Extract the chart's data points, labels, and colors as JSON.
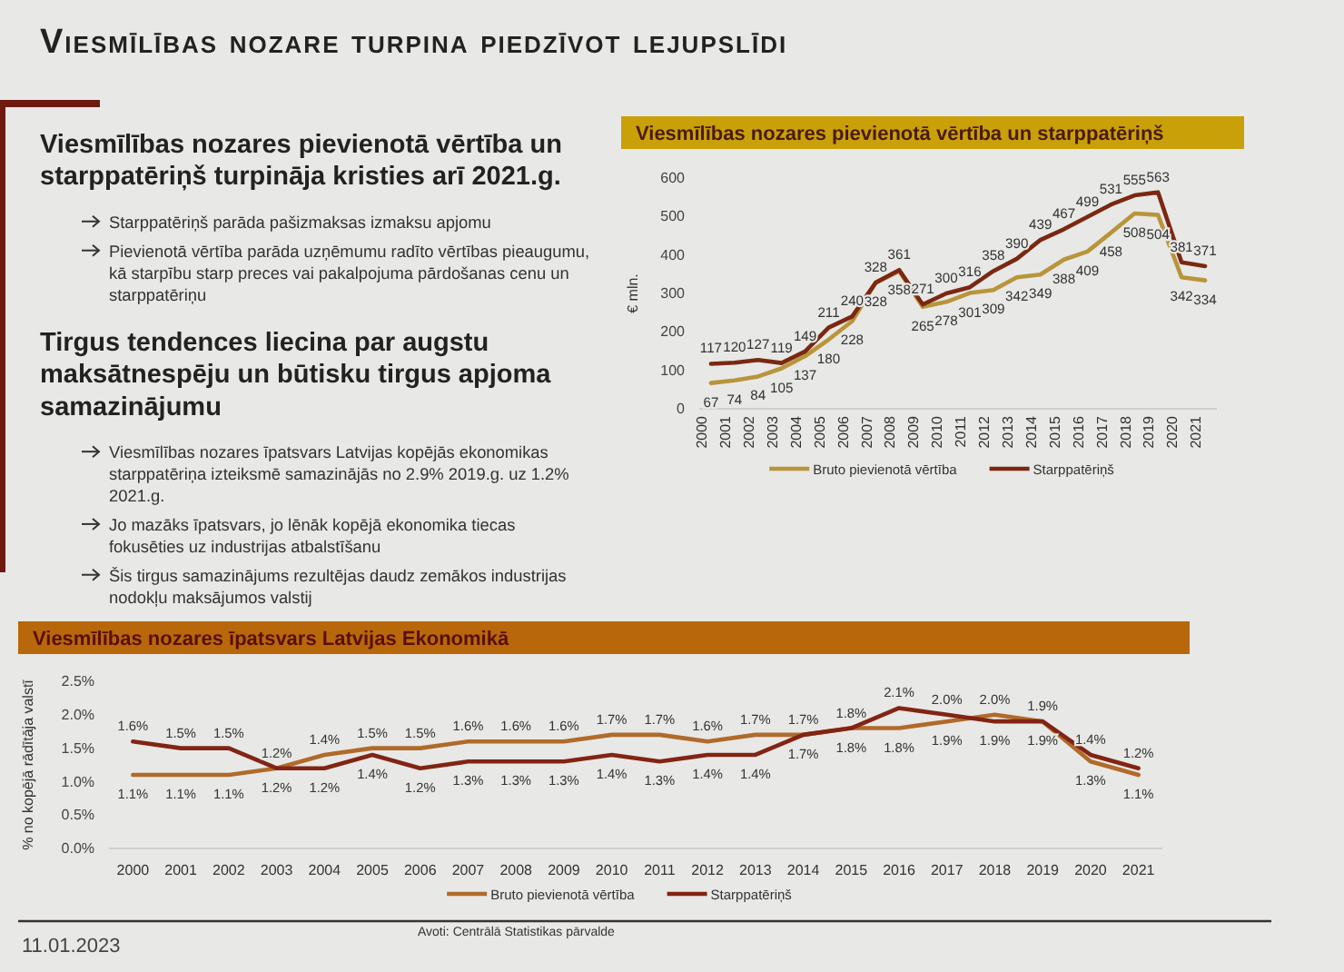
{
  "chart_data": [
    {
      "type": "other",
      "title": "Viesmīlības nozare turpina piedzīvot lejupslīdi",
      "annotations": [
        "11.01.2023"
      ]
    },
    {
      "type": "other",
      "title": "Viesmīlības nozares pievienotā vērtība un starppatēriņš turpināja kristies arī 2021.g.",
      "annotations": [
        "Starppatēriņš parāda pašizmaksas izmaksu apjomu",
        "Pievienotā vērtība parāda uzņēmumu radīto vērtības pieaugumu, kā starpību starp preces vai pakalpojuma pārdošanas cenu un starppatēriņu"
      ]
    },
    {
      "type": "other",
      "title": "Tirgus tendences liecina par augstu maksātnespēju un būtisku tirgus apjoma samazinājumu",
      "annotations": [
        "Viesmīlības nozares īpatsvars Latvijas kopējās ekonomikas starppatēriņa izteiksmē samazinājās no 2.9% 2019.g. uz 1.2% 2021.g.",
        "Jo mazāks īpatsvars, jo lēnāk kopējā ekonomika tiecas fokusēties uz industrijas atbalstīšanu",
        "Šis tirgus samazinājums rezultējas daudz zemākos industrijas nodokļu maksājumos valstij"
      ]
    },
    {
      "type": "line",
      "title": "Viesmīlības nozares pievienotā vērtība un starppatēriņš",
      "ylabel": "€ mln.",
      "categories": [
        "2000",
        "2001",
        "2002",
        "2003",
        "2004",
        "2005",
        "2006",
        "2007",
        "2008",
        "2009",
        "2010",
        "2011",
        "2012",
        "2013",
        "2014",
        "2015",
        "2016",
        "2017",
        "2018",
        "2019",
        "2020",
        "2021"
      ],
      "series": [
        {
          "name": "Bruto pievienotā vērtība",
          "color": "#b8953a",
          "values": [
            67,
            74,
            84,
            105,
            137,
            180,
            228,
            328,
            358,
            265,
            278,
            301,
            309,
            342,
            349,
            388,
            409,
            458,
            508,
            504,
            342,
            334
          ]
        },
        {
          "name": "Starppatēriņš",
          "color": "#7a2812",
          "values": [
            117,
            120,
            127,
            119,
            149,
            211,
            240,
            328,
            361,
            271,
            300,
            316,
            358,
            390,
            439,
            467,
            499,
            531,
            555,
            563,
            381,
            371
          ]
        }
      ],
      "ylim": [
        0,
        600
      ],
      "yticks": [
        0,
        100,
        200,
        300,
        400,
        500,
        600
      ],
      "data_labels": true,
      "legend": "bottom"
    },
    {
      "type": "line",
      "title": "Viesmīlības nozares īpatsvars Latvijas Ekonomikā",
      "ylabel": "% no kopējā rādītāja valstī",
      "categories": [
        "2000",
        "2001",
        "2002",
        "2003",
        "2004",
        "2005",
        "2006",
        "2007",
        "2008",
        "2009",
        "2010",
        "2011",
        "2012",
        "2013",
        "2014",
        "2015",
        "2016",
        "2017",
        "2018",
        "2019",
        "2020",
        "2021"
      ],
      "series": [
        {
          "name": "Bruto pievienotā vērtība",
          "color": "#b06a2a",
          "values": [
            1.1,
            1.1,
            1.1,
            1.2,
            1.4,
            1.5,
            1.5,
            1.6,
            1.6,
            1.6,
            1.7,
            1.7,
            1.6,
            1.7,
            1.7,
            1.8,
            1.8,
            1.9,
            2.0,
            1.9,
            1.3,
            1.1
          ],
          "value_labels": [
            "1.1%",
            "1.1%",
            "1.1%",
            "1.2%",
            "1.4%",
            "1.5%",
            "1.5%",
            "1.6%",
            "1.6%",
            "1.6%",
            "1.7%",
            "1.7%",
            "1.6%",
            "1.7%",
            "1.7%",
            "1.8%",
            "1.8%",
            "1.9%",
            "2.0%",
            "1.9%",
            "1.3%",
            "1.1%"
          ]
        },
        {
          "name": "Starppatēriņš",
          "color": "#822414",
          "values": [
            1.6,
            1.5,
            1.5,
            1.2,
            1.2,
            1.4,
            1.2,
            1.3,
            1.3,
            1.3,
            1.4,
            1.3,
            1.4,
            1.4,
            1.7,
            1.8,
            2.1,
            2.0,
            1.9,
            1.9,
            1.4,
            1.2
          ],
          "value_labels": [
            "1.6%",
            "1.5%",
            "1.5%",
            "1.2%",
            "1.2%",
            "1.4%",
            "1.2%",
            "1.3%",
            "1.3%",
            "1.3%",
            "1.4%",
            "1.3%",
            "1.4%",
            "1.4%",
            "1.7%",
            "1.8%",
            "2.1%",
            "2.0%",
            "1.9%",
            "1.9%",
            "1.4%",
            "1.2%"
          ]
        }
      ],
      "ylim": [
        0,
        2.5
      ],
      "yticks": [
        {
          "value": 0,
          "label": "0.0%"
        },
        {
          "value": 0.5,
          "label": "0.5%"
        },
        {
          "value": 1,
          "label": "1.0%"
        },
        {
          "value": 1.5,
          "label": "1.5%"
        },
        {
          "value": 2,
          "label": "2.0%"
        },
        {
          "value": 2.5,
          "label": "2.5%"
        }
      ],
      "legend": "bottom",
      "annotations": [
        "Avoti: Centrālā Statistikas pārvalde"
      ]
    }
  ]
}
